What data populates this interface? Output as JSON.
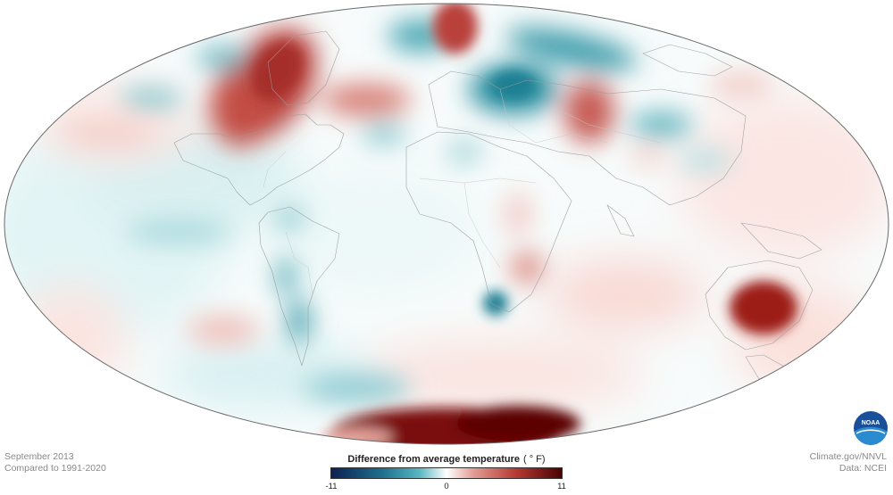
{
  "map": {
    "projection": "mollweide",
    "subject": "temperature anomaly",
    "scale": "diverging blue-white-red"
  },
  "footer": {
    "date_label": "September 2013",
    "baseline_label": "Compared to 1991-2020",
    "source_label": "Climate.gov/NNVL",
    "data_label": "Data: NCEI"
  },
  "legend": {
    "title": "Difference from average temperature",
    "unit": "( ° F)",
    "min_label": "-11",
    "mid_label": "0",
    "max_label": "11",
    "colors": {
      "cold_extreme": "#0c2152",
      "cold": "#2f9aa8",
      "neutral": "#ffffff",
      "warm": "#c9504a",
      "warm_extreme": "#4a0202"
    }
  },
  "logo": {
    "text": "NOAA",
    "color": "#1a4f9a"
  }
}
